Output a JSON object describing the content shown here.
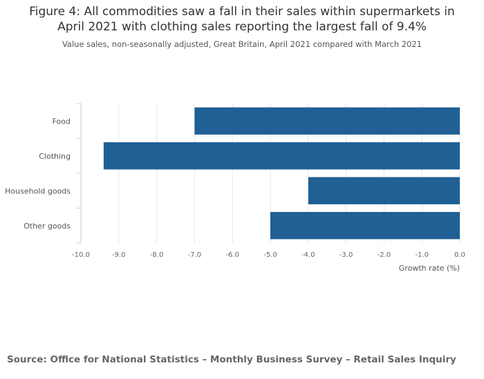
{
  "chart_data": {
    "type": "bar",
    "orientation": "horizontal",
    "title_lines": [
      "Figure 4: All commodities saw a fall in their sales within supermarkets in",
      "April 2021 with clothing sales reporting the largest fall of 9.4%"
    ],
    "subtitle": "Value sales, non-seasonally adjusted, Great Britain, April 2021 compared with March 2021",
    "categories": [
      "Food",
      "Clothing",
      "Household goods",
      "Other goods"
    ],
    "values": [
      -7.0,
      -9.4,
      -4.0,
      -5.0
    ],
    "xlabel": "Growth rate (%)",
    "ylabel": "",
    "xlim": [
      -10.0,
      0.0
    ],
    "xticks": [
      -10.0,
      -9.0,
      -8.0,
      -7.0,
      -6.0,
      -5.0,
      -4.0,
      -3.0,
      -2.0,
      -1.0,
      0.0
    ],
    "xtick_labels": [
      "-10.0",
      "-9.0",
      "-8.0",
      "-7.0",
      "-6.0",
      "-5.0",
      "-4.0",
      "-3.0",
      "-2.0",
      "-1.0",
      "0.0"
    ],
    "grid": true,
    "bar_color": "#206095",
    "source": "Source: Office for National Statistics – Monthly Business Survey – Retail Sales Inquiry"
  }
}
